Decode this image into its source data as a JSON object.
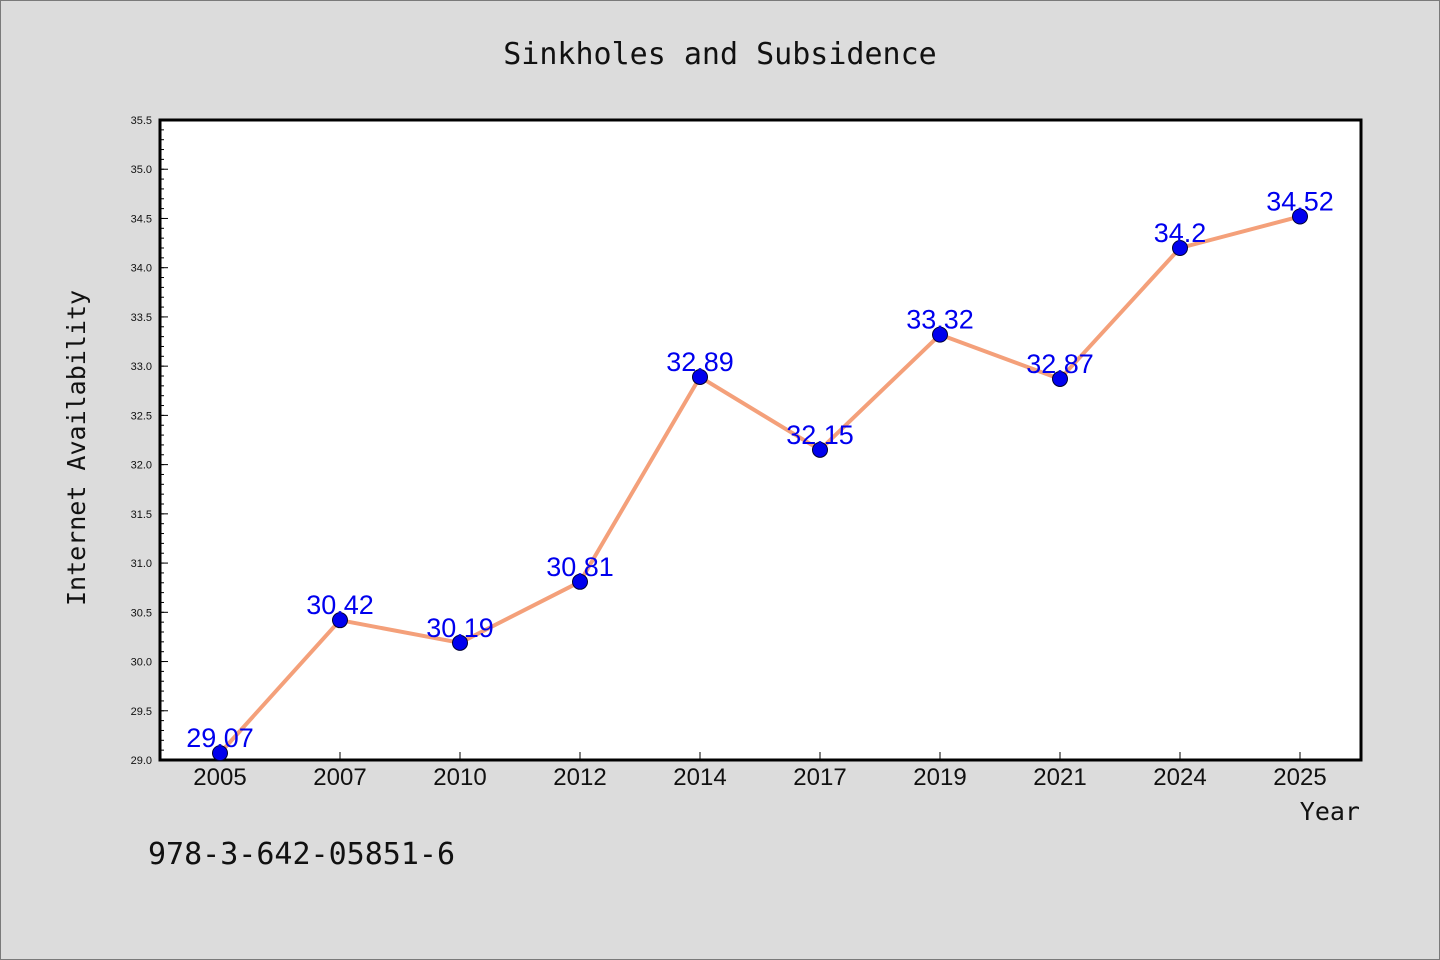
{
  "chart_data": {
    "type": "line",
    "title": "Sinkholes and Subsidence",
    "xlabel": "Year",
    "ylabel": "Internet Availability",
    "categories": [
      "2005",
      "2007",
      "2010",
      "2012",
      "2014",
      "2017",
      "2019",
      "2021",
      "2024",
      "2025"
    ],
    "series": [
      {
        "values": [
          29.07,
          30.42,
          30.19,
          30.81,
          32.89,
          32.15,
          33.32,
          32.87,
          34.2,
          34.52
        ],
        "labels": [
          "29.07",
          "30.42",
          "30.19",
          "30.81",
          "32.89",
          "32.15",
          "33.32",
          "32.87",
          "34.2",
          "34.52"
        ]
      }
    ],
    "ylim": [
      29.0,
      35.5
    ],
    "yticks": [
      "29.0",
      "29.5",
      "30.0",
      "30.5",
      "31.0",
      "31.5",
      "32.0",
      "32.5",
      "33.0",
      "33.5",
      "34.0",
      "34.5",
      "35.0",
      "35.5"
    ],
    "grid": false,
    "line_color": "#f4a07a",
    "marker_color": "#0000ee",
    "label_color": "#0000ee"
  },
  "footer": {
    "code": "978-3-642-05851-6"
  }
}
